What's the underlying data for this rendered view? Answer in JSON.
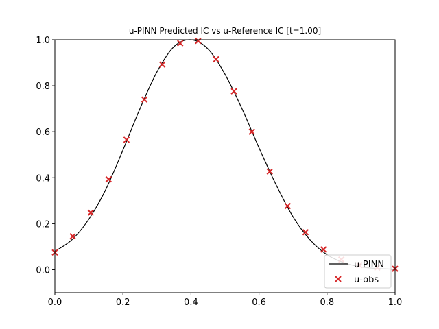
{
  "chart_data": {
    "type": "line",
    "title": "u-PINN Predicted IC vs u-Reference IC [t=1.00]",
    "xlabel": "",
    "ylabel": "",
    "xlim": [
      0,
      1
    ],
    "ylim": [
      -0.1,
      1.0
    ],
    "xticks": [
      0,
      0.2,
      0.4,
      0.6,
      0.8,
      1.0
    ],
    "xtick_labels": [
      "0.0",
      "0.2",
      "0.4",
      "0.6",
      "0.8",
      "1.0"
    ],
    "yticks": [
      0,
      0.2,
      0.4,
      0.6,
      0.8,
      1.0
    ],
    "ytick_labels": [
      "0.0",
      "0.2",
      "0.4",
      "0.6",
      "0.8",
      "1.0"
    ],
    "grid": false,
    "legend_position": "bottom-right",
    "series": [
      {
        "name": "u-PINN",
        "kind": "line",
        "color": "#000000",
        "x": [
          0.0,
          0.05,
          0.1,
          0.15,
          0.2,
          0.25,
          0.3,
          0.35,
          0.4,
          0.45,
          0.5,
          0.55,
          0.6,
          0.65,
          0.7,
          0.75,
          0.8,
          0.85,
          0.9,
          0.95,
          1.0
        ],
        "y": [
          0.08,
          0.13,
          0.22,
          0.35,
          0.52,
          0.7,
          0.86,
          0.97,
          1.0,
          0.96,
          0.85,
          0.7,
          0.53,
          0.37,
          0.23,
          0.13,
          0.065,
          0.03,
          0.012,
          0.005,
          0.002
        ]
      },
      {
        "name": "u-obs",
        "kind": "scatter",
        "marker": "x",
        "color": "#d62728",
        "x": [
          0.0,
          0.0526,
          0.1053,
          0.1579,
          0.2105,
          0.2632,
          0.3158,
          0.3684,
          0.4211,
          0.4737,
          0.5263,
          0.5789,
          0.6316,
          0.6842,
          0.7368,
          0.7895,
          0.8421,
          0.8947,
          0.9474,
          1.0
        ],
        "y": [
          0.075,
          0.145,
          0.248,
          0.393,
          0.565,
          0.74,
          0.892,
          0.985,
          0.995,
          0.915,
          0.776,
          0.6,
          0.427,
          0.277,
          0.163,
          0.088,
          0.044,
          0.02,
          0.009,
          0.004
        ]
      }
    ]
  }
}
